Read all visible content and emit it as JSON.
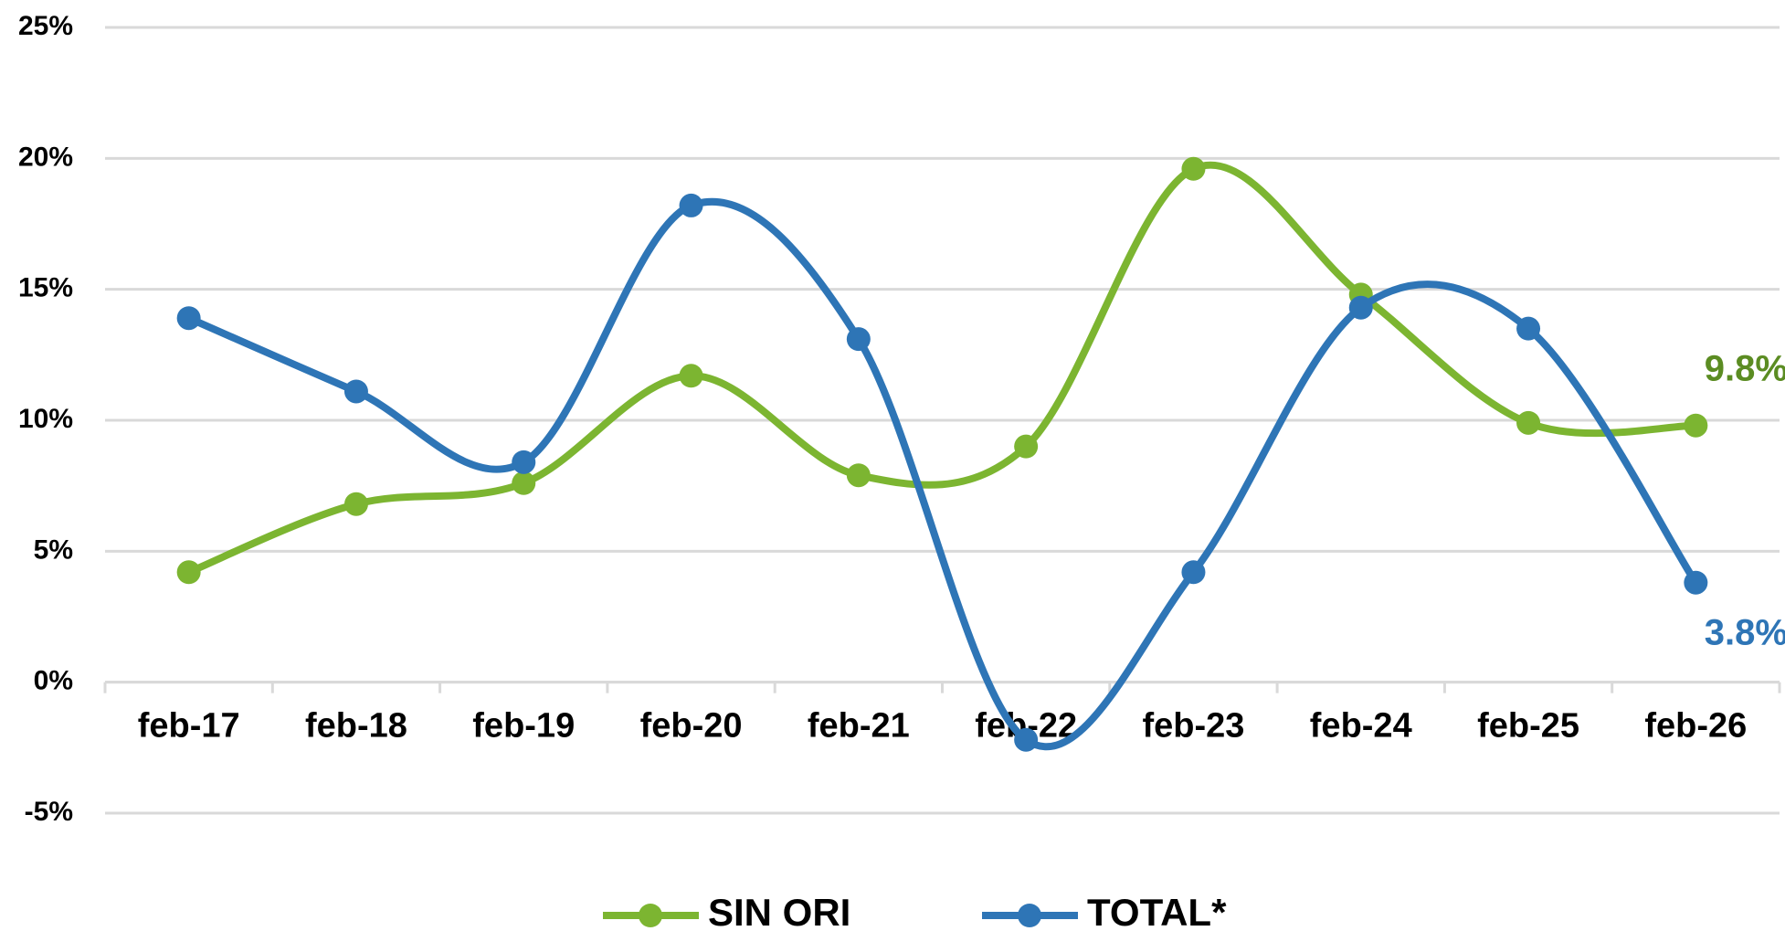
{
  "chart_data": {
    "type": "line",
    "categories": [
      "feb-17",
      "feb-18",
      "feb-19",
      "feb-20",
      "feb-21",
      "feb-22",
      "feb-23",
      "feb-24",
      "feb-25",
      "feb-26"
    ],
    "series": [
      {
        "name": "SIN ORI",
        "color": "#7cb531",
        "label_color": "#5b8c22",
        "values": [
          4.2,
          6.8,
          7.6,
          11.7,
          7.9,
          9.0,
          19.6,
          14.8,
          9.9,
          9.8
        ],
        "value_labels": [
          null,
          null,
          null,
          null,
          null,
          null,
          null,
          null,
          null,
          "9.8%"
        ]
      },
      {
        "name": "TOTAL*",
        "color": "#2e75b6",
        "label_color": "#2e75b6",
        "values": [
          13.9,
          11.1,
          8.4,
          18.2,
          13.1,
          -2.2,
          4.2,
          14.3,
          13.5,
          3.8
        ],
        "value_labels": [
          null,
          null,
          null,
          null,
          null,
          null,
          null,
          null,
          null,
          "3.8%"
        ]
      }
    ],
    "ylim": [
      -5,
      25
    ],
    "yticks": [
      {
        "value": -5,
        "label": "-5%"
      },
      {
        "value": 0,
        "label": "0%"
      },
      {
        "value": 5,
        "label": "5%"
      },
      {
        "value": 10,
        "label": "10%"
      },
      {
        "value": 15,
        "label": "15%"
      },
      {
        "value": 20,
        "label": "20%"
      },
      {
        "value": 25,
        "label": "25%"
      }
    ],
    "grid": true,
    "smooth": true,
    "legend": "bottom"
  }
}
